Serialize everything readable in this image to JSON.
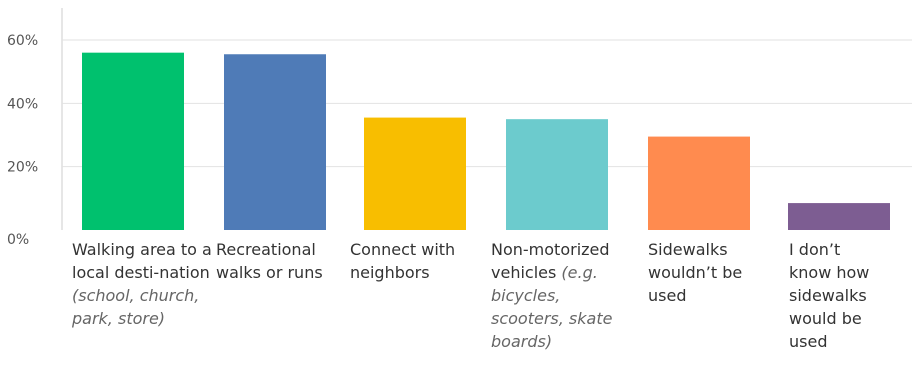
{
  "chart_data": {
    "type": "bar",
    "title": "",
    "xlabel": "",
    "ylabel": "",
    "ylim": [
      0,
      0.65
    ],
    "yticks": [
      {
        "value": 0.0,
        "label": "0%"
      },
      {
        "value": 0.2,
        "label": "20%"
      },
      {
        "value": 0.4,
        "label": "40%"
      },
      {
        "value": 0.6,
        "label": "60%"
      }
    ],
    "grid": true,
    "legend": "none",
    "categories": [
      {
        "label": "Walking area to a local desti-nation",
        "sublabel": "(school, church, park, store)"
      },
      {
        "label": "Recreational walks or runs",
        "sublabel": ""
      },
      {
        "label": "Connect with neighbors",
        "sublabel": ""
      },
      {
        "label": "Non-motorized vehicles",
        "sublabel": "(e.g. bicycles, scooters, skate boards)"
      },
      {
        "label": "Sidewalks wouldn’t be used",
        "sublabel": ""
      },
      {
        "label": "I don’t know how sidewalks would be used",
        "sublabel": ""
      }
    ],
    "values": [
      0.56,
      0.555,
      0.355,
      0.35,
      0.295,
      0.085
    ],
    "colors": [
      "#00C16E",
      "#4F7BB7",
      "#F8BE00",
      "#6CCBCD",
      "#FF8B4F",
      "#7D5D92"
    ]
  }
}
